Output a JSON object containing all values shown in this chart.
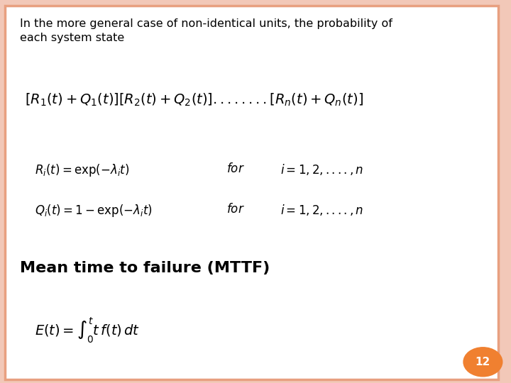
{
  "background_color": "#f2c8b8",
  "slide_bg": "#ffffff",
  "border_color": "#e8a080",
  "text_intro": "In the more general case of non-identical units, the probability of\neach system state",
  "eq1": "$[R_1(t)+Q_1(t)][R_2(t)+Q_2(t)]........[R_n(t)+Q_n(t)]$",
  "eq2": "$R_i(t)=\\mathrm{exp}(-\\lambda_i t)$",
  "eq2_for": "$for$",
  "eq2_range": "$i=1,2,....,n$",
  "eq3": "$Q_i(t)=1-\\mathrm{exp}(-\\lambda_i t)$",
  "eq3_for": "$for$",
  "eq3_range": "$i=1,2,....,n$",
  "heading": "Mean time to failure (MTTF)",
  "eq4": "$E(t)=\\int_0^t t\\,f(t)\\,dt$",
  "page_number": "12",
  "page_circle_color": "#f08030",
  "page_text_color": "#ffffff",
  "intro_fontsize": 11.5,
  "eq1_fontsize": 14,
  "eq23_fontsize": 12,
  "heading_fontsize": 16,
  "eq4_fontsize": 14
}
